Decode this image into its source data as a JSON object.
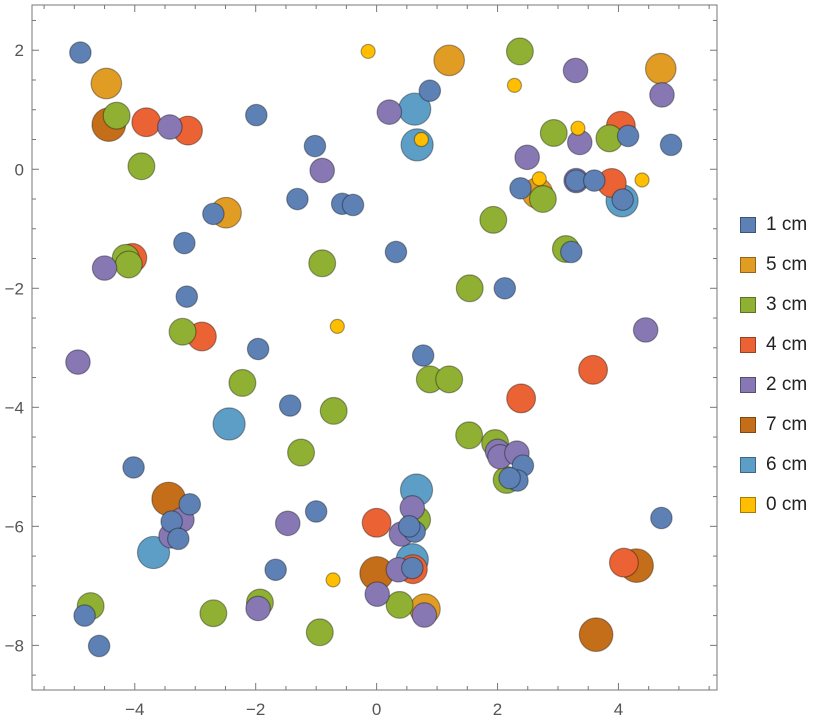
{
  "chart_data": {
    "type": "scatter",
    "subtype": "bubble",
    "title": "",
    "xlabel": "",
    "ylabel": "",
    "xlim": [
      -5.7,
      5.63
    ],
    "ylim": [
      -8.75,
      2.76
    ],
    "grid": false,
    "legend_placement": "right",
    "x_ticks": [
      -4,
      -2,
      0,
      2,
      4
    ],
    "y_ticks": [
      2,
      0,
      -2,
      -4,
      -6,
      -8
    ],
    "x_tick_labels": [
      "−4",
      "−2",
      "0",
      "2",
      "4"
    ],
    "y_tick_labels": [
      "2",
      "0",
      "−2",
      "−4",
      "−6",
      "−8"
    ],
    "series": [
      {
        "name": "1 cm",
        "size": 1,
        "color": "#5E81B5",
        "points": [
          [
            -4.9,
            1.96
          ],
          [
            -1.99,
            0.91
          ],
          [
            -1.02,
            0.39
          ],
          [
            -1.31,
            -0.5
          ],
          [
            -0.57,
            -0.58
          ],
          [
            -0.39,
            -0.6
          ],
          [
            -2.7,
            -0.75
          ],
          [
            -3.18,
            -1.24
          ],
          [
            -3.14,
            -2.14
          ],
          [
            -1.96,
            -3.02
          ],
          [
            0.88,
            1.32
          ],
          [
            4.16,
            0.56
          ],
          [
            4.87,
            0.41
          ],
          [
            2.38,
            -0.32
          ],
          [
            3.3,
            -0.19
          ],
          [
            3.6,
            -0.19
          ],
          [
            4.07,
            -0.51
          ],
          [
            0.32,
            -1.39
          ],
          [
            3.22,
            -1.39
          ],
          [
            2.12,
            -2.0
          ],
          [
            0.77,
            -3.13
          ],
          [
            -1.43,
            -3.97
          ],
          [
            -4.02,
            -5.01
          ],
          [
            -3.09,
            -5.63
          ],
          [
            -3.39,
            -5.92
          ],
          [
            -3.28,
            -6.21
          ],
          [
            -1.0,
            -5.75
          ],
          [
            -1.67,
            -6.73
          ],
          [
            -4.83,
            -7.5
          ],
          [
            -4.59,
            -8.01
          ],
          [
            2.42,
            -4.98
          ],
          [
            2.33,
            -5.23
          ],
          [
            2.2,
            -5.19
          ],
          [
            4.71,
            -5.86
          ],
          [
            0.63,
            -6.09
          ],
          [
            0.54,
            -6.0
          ],
          [
            0.59,
            -6.7
          ]
        ]
      },
      {
        "name": "5 cm",
        "size": 5,
        "color": "#E19C24",
        "points": [
          [
            -4.47,
            1.44
          ],
          [
            -2.49,
            -0.73
          ],
          [
            1.2,
            1.83
          ],
          [
            4.7,
            1.69
          ],
          [
            2.66,
            -0.4
          ],
          [
            0.8,
            -7.39
          ]
        ]
      },
      {
        "name": "3 cm",
        "size": 3,
        "color": "#8FB032",
        "points": [
          [
            -4.3,
            0.9
          ],
          [
            -3.89,
            0.05
          ],
          [
            -4.15,
            -1.49
          ],
          [
            -4.1,
            -1.6
          ],
          [
            -0.9,
            -1.58
          ],
          [
            -3.21,
            -2.73
          ],
          [
            2.37,
            1.98
          ],
          [
            2.93,
            0.61
          ],
          [
            3.85,
            0.52
          ],
          [
            2.75,
            -0.5
          ],
          [
            1.93,
            -0.85
          ],
          [
            3.13,
            -1.34
          ],
          [
            1.54,
            -2.0
          ],
          [
            -2.22,
            -3.59
          ],
          [
            -0.71,
            -4.06
          ],
          [
            -1.25,
            -4.76
          ],
          [
            -4.73,
            -7.34
          ],
          [
            -2.7,
            -7.46
          ],
          [
            -1.93,
            -7.28
          ],
          [
            -0.94,
            -7.78
          ],
          [
            0.88,
            -3.53
          ],
          [
            1.2,
            -3.53
          ],
          [
            1.53,
            -4.47
          ],
          [
            1.96,
            -4.6
          ],
          [
            2.15,
            -5.22
          ],
          [
            0.67,
            -5.89
          ],
          [
            0.38,
            -7.32
          ]
        ]
      },
      {
        "name": "4 cm",
        "size": 4,
        "color": "#EB6235",
        "points": [
          [
            -3.81,
            0.79
          ],
          [
            -3.12,
            0.65
          ],
          [
            -4.04,
            -1.49
          ],
          [
            -2.89,
            -2.81
          ],
          [
            4.04,
            0.73
          ],
          [
            3.89,
            -0.23
          ],
          [
            3.58,
            -3.37
          ],
          [
            2.39,
            -3.85
          ],
          [
            0.0,
            -5.94
          ],
          [
            0.6,
            -6.72
          ],
          [
            4.09,
            -6.61
          ]
        ]
      },
      {
        "name": "2 cm",
        "size": 2,
        "color": "#8778B3",
        "points": [
          [
            -3.42,
            0.71
          ],
          [
            -0.9,
            -0.02
          ],
          [
            -4.5,
            -1.66
          ],
          [
            3.29,
            1.66
          ],
          [
            4.72,
            1.25
          ],
          [
            0.21,
            0.96
          ],
          [
            3.36,
            0.45
          ],
          [
            2.49,
            0.2
          ],
          [
            3.3,
            -0.19
          ],
          [
            4.45,
            -2.7
          ],
          [
            -4.94,
            -3.24
          ],
          [
            -3.22,
            -5.89
          ],
          [
            -3.4,
            -6.16
          ],
          [
            -1.47,
            -5.95
          ],
          [
            -1.96,
            -7.38
          ],
          [
            0.01,
            -7.14
          ],
          [
            2.0,
            -4.74
          ],
          [
            2.04,
            -4.83
          ],
          [
            2.32,
            -4.77
          ],
          [
            0.59,
            -5.69
          ],
          [
            0.41,
            -6.13
          ],
          [
            0.36,
            -6.73
          ],
          [
            0.79,
            -7.49
          ]
        ]
      },
      {
        "name": "7 cm",
        "size": 7,
        "color": "#C56E1A",
        "points": [
          [
            -4.43,
            0.75
          ],
          [
            -3.44,
            -5.54
          ],
          [
            0.0,
            -6.79
          ],
          [
            4.3,
            -6.66
          ],
          [
            3.63,
            -7.82
          ]
        ]
      },
      {
        "name": "6 cm",
        "size": 6,
        "color": "#5D9EC7",
        "points": [
          [
            0.63,
            1.01
          ],
          [
            0.67,
            0.41
          ],
          [
            4.06,
            -0.53
          ],
          [
            -2.44,
            -4.28
          ],
          [
            -3.69,
            -6.44
          ],
          [
            0.66,
            -5.39
          ],
          [
            0.59,
            -6.56
          ]
        ]
      },
      {
        "name": "0 cm",
        "size": 0,
        "color": "#FFBF00",
        "points": [
          [
            -0.14,
            1.98
          ],
          [
            -0.65,
            -2.64
          ],
          [
            2.28,
            1.41
          ],
          [
            0.74,
            0.5
          ],
          [
            3.33,
            0.69
          ],
          [
            2.69,
            -0.16
          ],
          [
            4.39,
            -0.18
          ],
          [
            -0.72,
            -6.9
          ]
        ]
      }
    ]
  }
}
